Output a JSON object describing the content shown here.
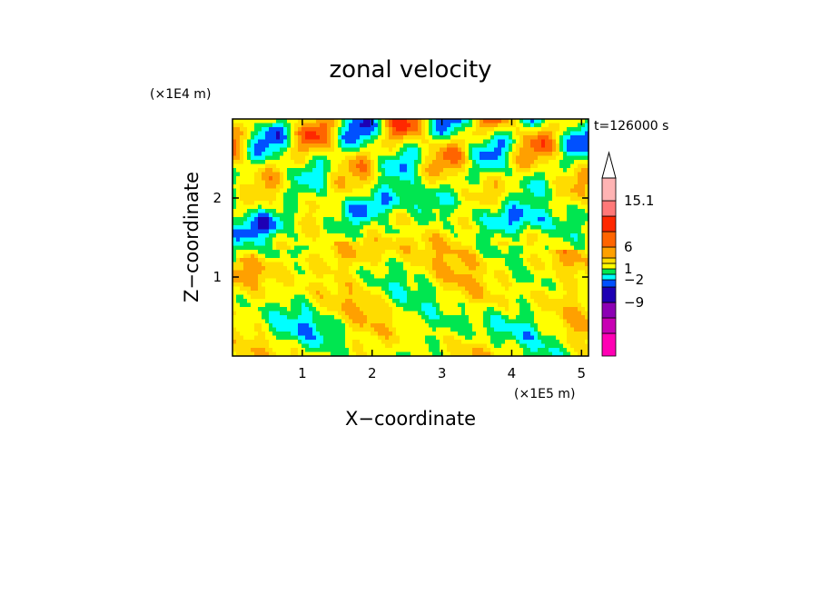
{
  "chart_data": {
    "type": "heatmap",
    "title": "zonal velocity",
    "xlabel": "X−coordinate",
    "ylabel": "Z−coordinate",
    "x_unit": "(×1E5 m)",
    "y_unit": "(×1E4 m)",
    "time_label": "t=126000 s",
    "xlim": [
      0,
      5.1
    ],
    "ylim": [
      0,
      3
    ],
    "x_ticks": [
      {
        "value": 1,
        "label": "1"
      },
      {
        "value": 2,
        "label": "2"
      },
      {
        "value": 3,
        "label": "3"
      },
      {
        "value": 4,
        "label": "4"
      },
      {
        "value": 5,
        "label": "5"
      }
    ],
    "y_ticks": [
      {
        "value": 1,
        "label": "1"
      },
      {
        "value": 2,
        "label": "2"
      }
    ],
    "colorbar": {
      "levels": [
        {
          "color": "#ff00b4"
        },
        {
          "color": "#c800b4"
        },
        {
          "color": "#8c00b4"
        },
        {
          "color": "#1e00b4"
        },
        {
          "color": "#0050ff"
        },
        {
          "color": "#00ffff"
        },
        {
          "color": "#00e650"
        },
        {
          "color": "#ffff00"
        },
        {
          "color": "#ffdc00"
        },
        {
          "color": "#ffa000"
        },
        {
          "color": "#ff6400"
        },
        {
          "color": "#ff2800"
        },
        {
          "color": "#ff7878"
        },
        {
          "color": "#ffb4b4"
        }
      ],
      "labels": [
        {
          "label": "−9",
          "value": -9
        },
        {
          "label": "−2",
          "value": -2
        },
        {
          "label": "1",
          "value": 1
        },
        {
          "label": "6",
          "value": 6
        },
        {
          "label": "15.1",
          "value": 15.1
        }
      ]
    }
  }
}
